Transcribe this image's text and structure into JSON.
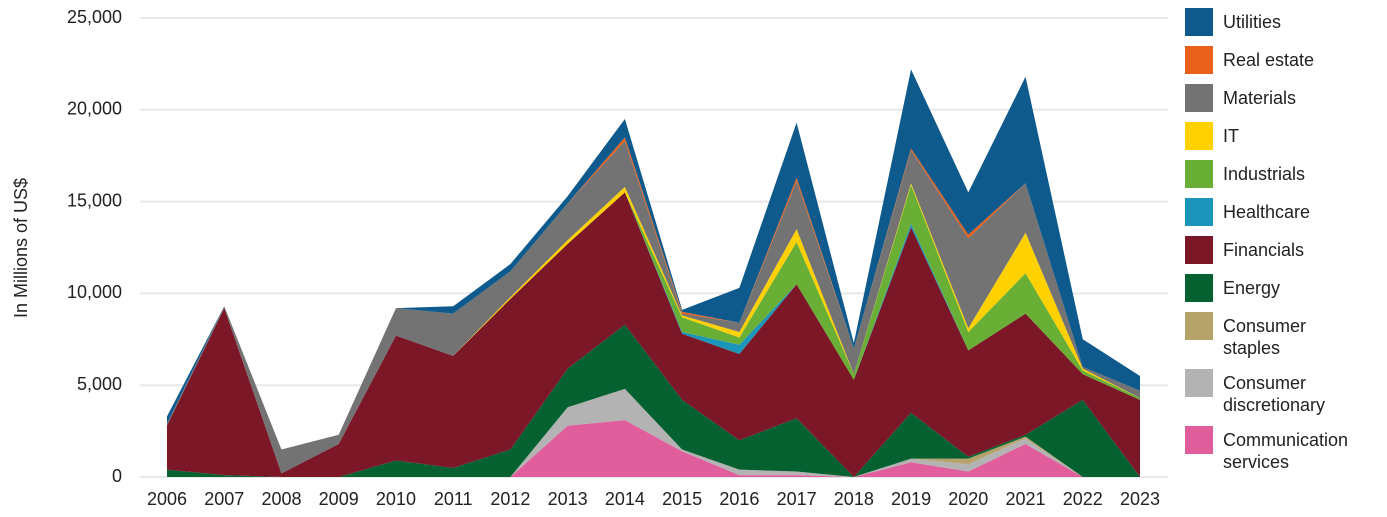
{
  "chart_data": {
    "type": "area",
    "stacked": true,
    "ylabel": "In Millions of US$",
    "categories": [
      "2006",
      "2007",
      "2008",
      "2009",
      "2010",
      "2011",
      "2012",
      "2013",
      "2014",
      "2015",
      "2016",
      "2017",
      "2018",
      "2019",
      "2020",
      "2021",
      "2022",
      "2023"
    ],
    "ylim": [
      0,
      25000
    ],
    "yticks": [
      0,
      {
        "value": 5000,
        "label": "5,000"
      },
      {
        "value": 10000,
        "label": "10,000"
      },
      {
        "value": 15000,
        "label": "15,000"
      },
      {
        "value": 20000,
        "label": "20,000"
      },
      {
        "value": 25000,
        "label": "25,000"
      }
    ],
    "grid": true,
    "legend": "right",
    "series": [
      {
        "name": "Communication services",
        "color": "#e05e9c",
        "values": [
          0,
          0,
          0,
          0,
          0,
          0,
          0,
          2800,
          3100,
          1400,
          100,
          100,
          0,
          800,
          300,
          1800,
          0,
          0
        ]
      },
      {
        "name": "Consumer discretionary",
        "color": "#b3b3b3",
        "values": [
          0,
          0,
          0,
          0,
          0,
          0,
          0,
          1000,
          1700,
          100,
          300,
          200,
          0,
          200,
          400,
          300,
          0,
          0
        ]
      },
      {
        "name": "Consumer staples",
        "color": "#b5a36b",
        "values": [
          0,
          0,
          0,
          0,
          0,
          0,
          0,
          0,
          0,
          0,
          0,
          0,
          0,
          0,
          300,
          100,
          0,
          0
        ]
      },
      {
        "name": "Energy",
        "color": "#056130",
        "values": [
          400,
          100,
          0,
          0,
          900,
          500,
          1500,
          2100,
          3500,
          2700,
          1600,
          2900,
          0,
          2500,
          100,
          100,
          4200,
          0
        ]
      },
      {
        "name": "Financials",
        "color": "#7b1726",
        "values": [
          2400,
          9100,
          200,
          1800,
          6800,
          6100,
          8200,
          6800,
          7200,
          3600,
          4700,
          7300,
          5300,
          10100,
          5800,
          6600,
          1400,
          4200
        ]
      },
      {
        "name": "Healthcare",
        "color": "#1b95b9",
        "values": [
          0,
          0,
          0,
          0,
          0,
          0,
          0,
          0,
          0,
          100,
          500,
          0,
          0,
          200,
          0,
          0,
          0,
          0
        ]
      },
      {
        "name": "Industrials",
        "color": "#6aaf35",
        "values": [
          0,
          0,
          0,
          0,
          0,
          0,
          0,
          0,
          0,
          800,
          400,
          2300,
          300,
          2100,
          1000,
          2200,
          200,
          100
        ]
      },
      {
        "name": "IT",
        "color": "#ffd100",
        "values": [
          0,
          0,
          0,
          0,
          0,
          0,
          100,
          200,
          300,
          100,
          300,
          700,
          0,
          100,
          200,
          2200,
          100,
          0
        ]
      },
      {
        "name": "Materials",
        "color": "#737373",
        "values": [
          100,
          100,
          1300,
          500,
          1500,
          2300,
          1400,
          2000,
          2500,
          100,
          500,
          2600,
          1400,
          1800,
          4900,
          2700,
          100,
          400
        ]
      },
      {
        "name": "Real estate",
        "color": "#e8601c",
        "values": [
          0,
          0,
          0,
          0,
          0,
          0,
          0,
          0,
          200,
          100,
          0,
          200,
          0,
          100,
          200,
          0,
          0,
          0
        ]
      },
      {
        "name": "Utilities",
        "color": "#0f5a8c",
        "values": [
          400,
          0,
          0,
          0,
          0,
          400,
          400,
          400,
          1000,
          100,
          1900,
          3000,
          300,
          4300,
          2300,
          5800,
          1500,
          800
        ]
      }
    ]
  }
}
